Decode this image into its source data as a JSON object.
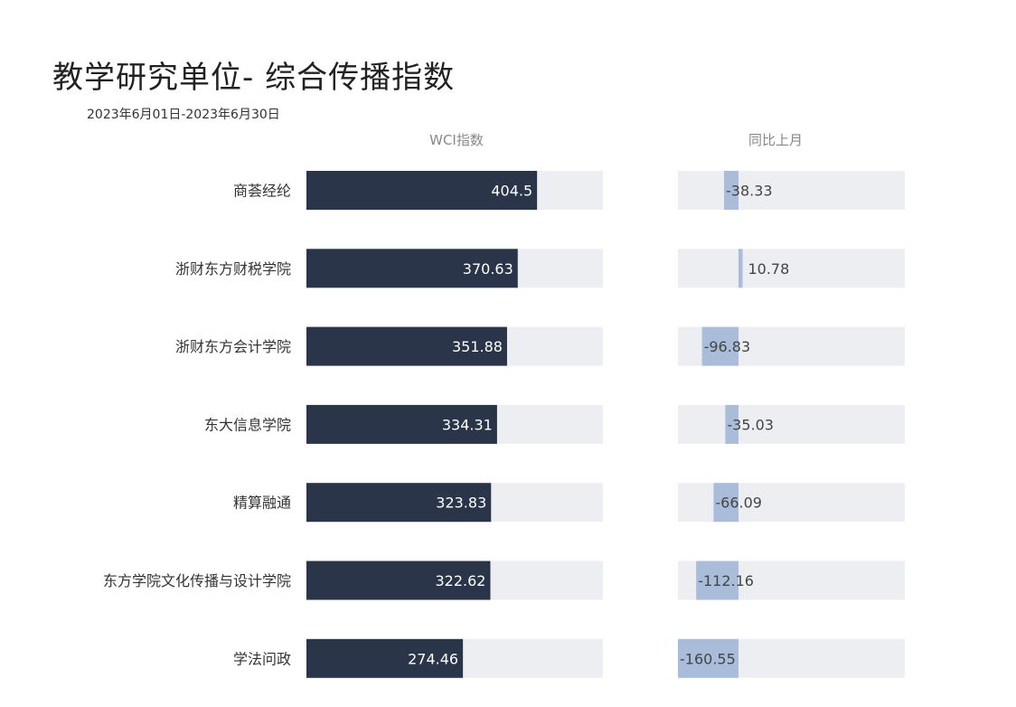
{
  "chart_data": {
    "type": "bar",
    "title": "教学研究单位- 综合传播指数",
    "subtitle": "2023年6月01日-2023年6月30日",
    "panels": [
      {
        "header": "WCI指数",
        "axis_max": 520
      },
      {
        "header": "同比上月",
        "axis_min": -160.55
      }
    ],
    "categories": [
      "商荟经纶",
      "浙财东方财税学院",
      "浙财东方会计学院",
      "东大信息学院",
      "精算融通",
      "东方学院文化传播与设计学院",
      "学法问政"
    ],
    "series": [
      {
        "name": "WCI指数",
        "values": [
          404.5,
          370.63,
          351.88,
          334.31,
          323.83,
          322.62,
          274.46
        ]
      },
      {
        "name": "同比上月",
        "values": [
          -38.33,
          10.78,
          -96.83,
          -35.03,
          -66.09,
          -112.16,
          -160.55
        ]
      }
    ],
    "value_labels": [
      "404.5",
      "370.63",
      "351.88",
      "334.31",
      "323.83",
      "322.62",
      "274.46"
    ],
    "delta_labels": [
      "-38.33",
      "10.78",
      "-96.83",
      "-35.03",
      "-66.09",
      "-112.16",
      "-160.55"
    ],
    "colors": {
      "wci_bar": "#2b3549",
      "delta_bar": "#a9bddb",
      "track": "#eceef2",
      "title_text": "#222222",
      "header_text": "#888888"
    }
  }
}
